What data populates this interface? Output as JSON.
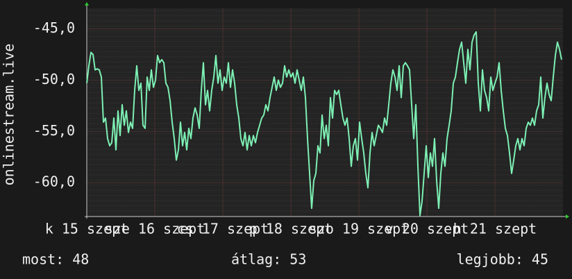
{
  "chart_data": {
    "type": "line",
    "ylabel": "onlinestream.live",
    "ylim": [
      -63.3,
      -43.0
    ],
    "yticks": [
      {
        "value": -45,
        "label": "-45,0"
      },
      {
        "value": -50,
        "label": "-50,0"
      },
      {
        "value": -55,
        "label": "-55,0"
      },
      {
        "value": -60,
        "label": "-60,0"
      }
    ],
    "xlim": [
      15,
      22
    ],
    "xticks": [
      {
        "value": 15,
        "label": "k 15 szept"
      },
      {
        "value": 16,
        "label": "sze 16 szept"
      },
      {
        "value": 17,
        "label": "cs 17 szept"
      },
      {
        "value": 18,
        "label": "p 18 szept"
      },
      {
        "value": 19,
        "label": "szo 19 szept"
      },
      {
        "value": 20,
        "label": "v 20 szept"
      },
      {
        "value": 21,
        "label": "h 21 szept"
      }
    ],
    "grid": true,
    "series": [
      {
        "color": "#7df0b4",
        "values": [
          -50.3,
          -48.6,
          -47.3,
          -47.5,
          -49.0,
          -48.9,
          -49.0,
          -49.7,
          -54.1,
          -53.7,
          -55.7,
          -56.4,
          -56.1,
          -53.7,
          -56.8,
          -53.0,
          -55.4,
          -52.4,
          -54.4,
          -53.0,
          -55.1,
          -54.1,
          -54.7,
          -51.0,
          -48.6,
          -51.0,
          -50.3,
          -54.4,
          -54.7,
          -49.7,
          -51.0,
          -49.0,
          -50.7,
          -50.0,
          -47.6,
          -48.3,
          -48.0,
          -48.3,
          -50.3,
          -50.7,
          -52.0,
          -54.1,
          -55.7,
          -57.8,
          -56.8,
          -54.1,
          -56.4,
          -55.1,
          -56.8,
          -54.7,
          -55.7,
          -53.7,
          -52.7,
          -53.4,
          -54.7,
          -51.0,
          -48.3,
          -52.4,
          -51.0,
          -53.0,
          -51.0,
          -49.7,
          -47.6,
          -50.3,
          -49.0,
          -51.0,
          -49.7,
          -50.3,
          -48.3,
          -50.7,
          -49.0,
          -50.3,
          -52.4,
          -53.7,
          -55.7,
          -56.4,
          -55.1,
          -56.8,
          -55.4,
          -56.4,
          -55.4,
          -56.1,
          -55.1,
          -54.4,
          -53.7,
          -53.4,
          -52.4,
          -53.0,
          -51.7,
          -50.7,
          -49.7,
          -51.0,
          -50.0,
          -50.7,
          -50.3,
          -48.6,
          -49.7,
          -49.0,
          -49.7,
          -49.3,
          -50.3,
          -49.0,
          -50.0,
          -51.0,
          -49.7,
          -51.7,
          -55.7,
          -59.1,
          -62.5,
          -59.8,
          -59.1,
          -56.4,
          -57.1,
          -53.4,
          -55.7,
          -54.4,
          -56.4,
          -51.7,
          -53.7,
          -51.0,
          -51.4,
          -51.0,
          -52.4,
          -53.7,
          -54.4,
          -53.7,
          -55.7,
          -58.4,
          -56.4,
          -55.7,
          -57.8,
          -54.1,
          -55.7,
          -57.1,
          -59.1,
          -60.5,
          -57.1,
          -55.1,
          -56.4,
          -55.4,
          -54.4,
          -54.7,
          -55.1,
          -53.7,
          -54.4,
          -52.4,
          -50.3,
          -49.0,
          -49.7,
          -51.0,
          -48.6,
          -51.7,
          -48.6,
          -48.3,
          -48.6,
          -49.0,
          -52.4,
          -55.7,
          -52.4,
          -58.4,
          -63.2,
          -61.8,
          -59.1,
          -56.4,
          -59.5,
          -57.1,
          -58.4,
          -55.7,
          -59.8,
          -62.5,
          -59.1,
          -57.1,
          -58.4,
          -55.7,
          -54.4,
          -53.0,
          -50.3,
          -49.7,
          -48.3,
          -47.0,
          -46.3,
          -48.3,
          -50.3,
          -47.0,
          -49.0,
          -46.3,
          -45.6,
          -45.3,
          -50.3,
          -53.0,
          -49.0,
          -51.0,
          -51.7,
          -53.0,
          -49.7,
          -51.0,
          -50.3,
          -49.7,
          -48.3,
          -51.0,
          -53.0,
          -54.7,
          -55.4,
          -57.1,
          -59.1,
          -57.8,
          -56.4,
          -55.7,
          -56.8,
          -55.7,
          -56.4,
          -54.7,
          -54.1,
          -54.4,
          -53.7,
          -54.4,
          -53.0,
          -52.4,
          -49.7,
          -53.7,
          -51.7,
          -50.3,
          -51.4,
          -52.0,
          -49.7,
          -47.6,
          -46.3,
          -47.0,
          -48.0
        ]
      }
    ],
    "footer": {
      "current": "most: 48",
      "average": "átlag: 53",
      "best": "legjobb: 45"
    }
  }
}
